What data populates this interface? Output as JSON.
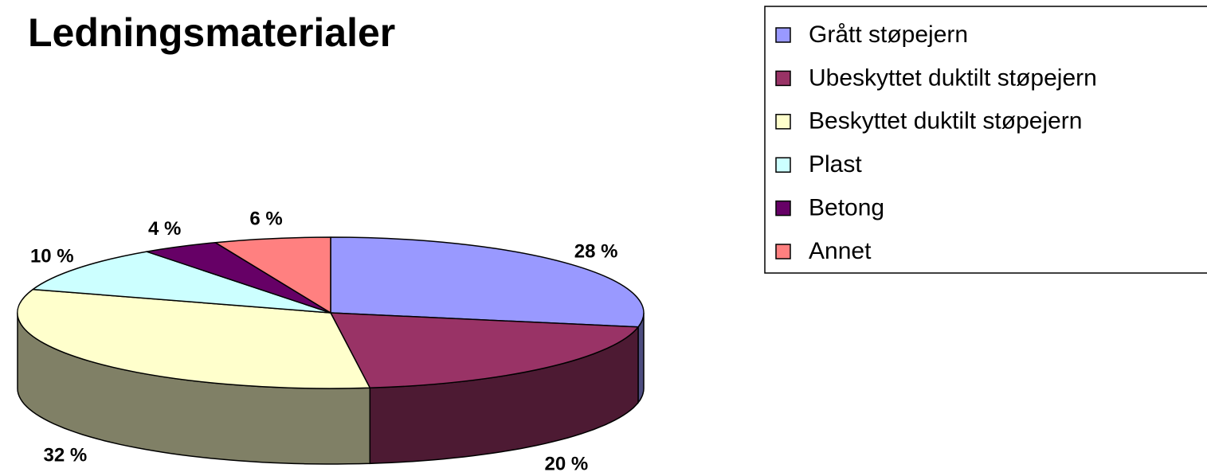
{
  "chart_data": {
    "type": "pie3d",
    "title": "Ledningsmaterialer",
    "categories": [
      "Grått støpejern",
      "Ubeskyttet duktilt støpejern",
      "Beskyttet duktilt støpejern",
      "Plast",
      "Betong",
      "Annet"
    ],
    "values": [
      28,
      20,
      32,
      10,
      4,
      6
    ],
    "value_labels": [
      "28 %",
      "20 %",
      "32 %",
      "10 %",
      "4 %",
      "6 %"
    ],
    "colors": [
      "#9999ff",
      "#993366",
      "#ffffcc",
      "#ccffff",
      "#660066",
      "#ff8080"
    ],
    "legend": "top-right"
  }
}
